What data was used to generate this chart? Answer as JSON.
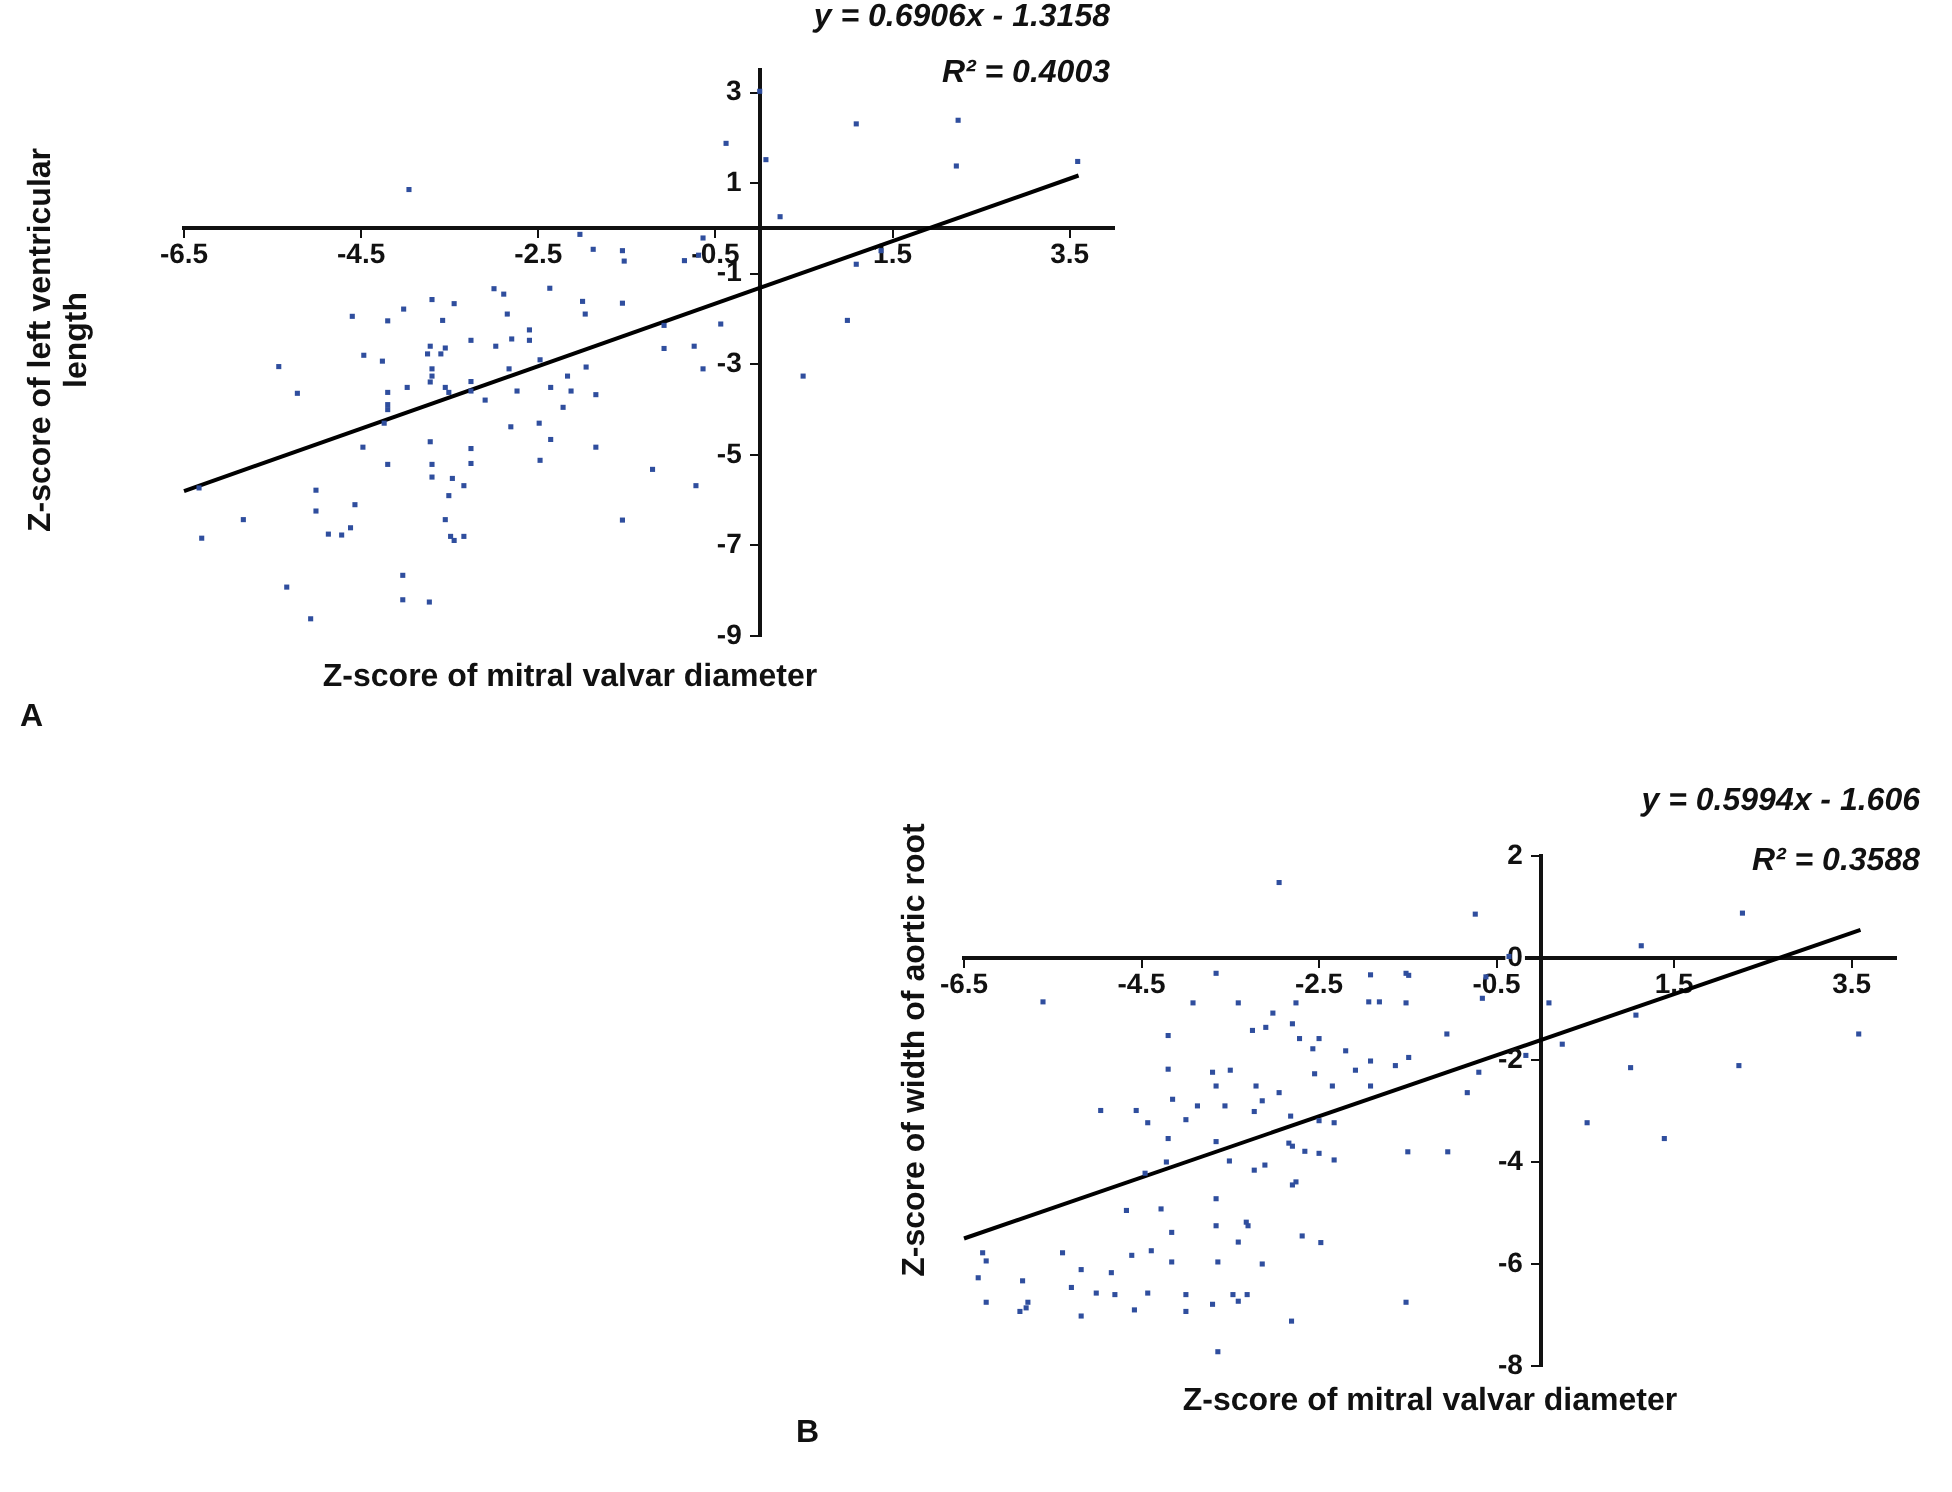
{
  "chart_data": [
    {
      "type": "scatter",
      "xlabel": "Z-score of mitral valvar diameter",
      "ylabel": "Z-score of left ventricular length",
      "annotations": [
        "y = 0.6906x - 1.3158",
        "R² = 0.4003",
        "A"
      ],
      "xlim": [
        -6.5,
        4
      ],
      "xticks": [
        -6.5,
        -4.5,
        -2.5,
        -0.5,
        1.5,
        3.5
      ],
      "ylim": [
        -9,
        3.5
      ],
      "yticks": [
        -9,
        -7,
        -5,
        -3,
        -1,
        1,
        3
      ],
      "legend": false,
      "series": [
        {
          "type": "scatter",
          "color": "#2f4e9e",
          "marker": "square",
          "x": [
            0.0,
            -0.38,
            0.07,
            0.23,
            1.09,
            2.24,
            2.22,
            3.59,
            -3.96,
            -2.03,
            -1.88,
            -1.55,
            -1.53,
            -0.64,
            -0.69,
            -0.85,
            1.37,
            1.09,
            0.99,
            0.49,
            -0.44,
            -0.74,
            -0.64,
            -1.08,
            -1.08,
            -1.55,
            -2.0,
            -1.97,
            -2.37,
            -3.0,
            -2.89,
            -2.85,
            -2.6,
            -2.6,
            -2.8,
            -2.98,
            -2.48,
            -2.83,
            -2.74,
            -2.36,
            -2.13,
            -2.17,
            -1.96,
            -1.85,
            -2.22,
            -2.81,
            -2.49,
            -2.36,
            -2.48,
            -1.85,
            -1.21,
            -0.72,
            -1.55,
            -3.1,
            -3.26,
            -3.26,
            -3.26,
            -3.45,
            -3.58,
            -3.55,
            -3.6,
            -3.7,
            -3.72,
            -3.75,
            -3.7,
            -3.7,
            -3.72,
            -4.02,
            -3.98,
            -4.2,
            -4.2,
            -4.2,
            -4.2,
            -4.26,
            -4.47,
            -4.6,
            -4.24,
            -4.48,
            -4.2,
            -3.55,
            -3.51,
            -3.26,
            -3.26,
            -3.72,
            -3.7,
            -3.7,
            -3.47,
            -3.34,
            -3.51,
            -3.55,
            -3.49,
            -3.45,
            -3.34,
            -4.57,
            -4.62,
            -4.72,
            -4.87,
            -5.01,
            -5.01,
            -4.03,
            -4.03,
            -3.73,
            -5.34,
            -5.07,
            -5.43,
            -5.22,
            -5.83,
            -6.33,
            -6.3
          ],
          "values": [
            3.03,
            1.88,
            1.52,
            0.26,
            2.31,
            2.39,
            1.38,
            1.48,
            0.86,
            -0.13,
            -0.46,
            -0.49,
            -0.72,
            -0.21,
            -0.59,
            -0.71,
            -0.49,
            -0.79,
            -2.03,
            -3.26,
            -2.11,
            -2.6,
            -3.1,
            -2.14,
            -2.65,
            -1.65,
            -1.61,
            -1.89,
            -1.32,
            -1.33,
            -1.45,
            -1.89,
            -2.24,
            -2.47,
            -2.44,
            -2.6,
            -2.9,
            -3.1,
            -3.59,
            -3.51,
            -3.59,
            -3.26,
            -3.06,
            -3.67,
            -3.95,
            -4.38,
            -4.3,
            -4.66,
            -5.12,
            -4.83,
            -5.32,
            -5.68,
            -6.44,
            -3.79,
            -3.59,
            -3.38,
            -2.47,
            -1.66,
            -2.03,
            -2.64,
            -2.77,
            -1.57,
            -2.6,
            -2.77,
            -3.1,
            -3.26,
            -3.39,
            -1.78,
            -3.51,
            -2.04,
            -3.62,
            -3.89,
            -4.0,
            -2.93,
            -2.8,
            -1.94,
            -4.3,
            -4.83,
            -5.21,
            -3.51,
            -3.62,
            -4.86,
            -5.19,
            -4.71,
            -5.21,
            -5.49,
            -5.52,
            -5.68,
            -5.9,
            -6.43,
            -6.8,
            -6.89,
            -6.8,
            -6.1,
            -6.61,
            -6.77,
            -6.75,
            -5.78,
            -6.24,
            -7.66,
            -8.2,
            -8.25,
            -7.92,
            -8.62,
            -3.05,
            -3.64,
            -6.43,
            -5.73,
            -6.84
          ]
        },
        {
          "type": "line",
          "color": "#000000",
          "marker": "none",
          "x": [
            -6.5,
            3.6
          ],
          "values": [
            -5.8,
            1.17
          ]
        }
      ]
    },
    {
      "type": "scatter",
      "xlabel": "Z-score of mitral valvar diameter",
      "ylabel": "Z-score of width of aortic root",
      "annotations": [
        "y = 0.5994x - 1.606",
        "R² = 0.3588",
        "B"
      ],
      "xlim": [
        -6.5,
        4
      ],
      "xticks": [
        -6.5,
        -4.5,
        -2.5,
        -0.5,
        1.5,
        3.5
      ],
      "ylim": [
        -8,
        2
      ],
      "yticks": [
        -8,
        -6,
        -4,
        -2,
        0,
        2
      ],
      "legend": false,
      "series": [
        {
          "type": "scatter",
          "color": "#2f4e9e",
          "marker": "square",
          "x": [
            -2.95,
            -0.74,
            2.27,
            1.13,
            -0.62,
            -0.66,
            -0.36,
            -3.66,
            -5.61,
            -3.92,
            -3.41,
            -2.76,
            -1.94,
            -1.82,
            -1.92,
            -1.52,
            -1.49,
            -1.52,
            0.09,
            1.07,
            0.24,
            3.58,
            -4.2,
            -4.2,
            -3.25,
            -3.02,
            -3.1,
            -2.8,
            -2.72,
            -2.57,
            -2.5,
            -2.55,
            -2.35,
            -2.2,
            -2.09,
            -1.92,
            -1.92,
            -1.64,
            -1.49,
            -1.06,
            -0.83,
            -0.7,
            -0.17,
            1.01,
            2.23,
            0.52,
            1.39,
            -1.5,
            -1.05,
            -4.96,
            -4.56,
            -4.43,
            -4.2,
            -4.15,
            -4.0,
            -3.87,
            -3.7,
            -3.66,
            -3.5,
            -3.56,
            -3.66,
            -3.51,
            -3.21,
            -3.23,
            -3.14,
            -2.95,
            -2.82,
            -2.84,
            -2.8,
            -2.66,
            -2.5,
            -2.5,
            -2.33,
            -3.23,
            -3.11,
            -2.76,
            -2.8,
            -2.33,
            -4.46,
            -4.22,
            -4.67,
            -4.28,
            -4.16,
            -3.66,
            -3.66,
            -3.32,
            -3.3,
            -3.41,
            -3.14,
            -2.69,
            -2.48,
            -3.64,
            -4.39,
            -4.16,
            -4.61,
            -4.84,
            -5.01,
            -5.39,
            -5.18,
            -5.29,
            -5.18,
            -4.8,
            -4.58,
            -4.43,
            -4.0,
            -4.0,
            -3.7,
            -3.47,
            -3.41,
            -3.31,
            -3.64,
            -2.81,
            -1.52,
            -6.29,
            -6.25,
            -6.34,
            -6.25,
            -5.84,
            -5.8,
            -5.87,
            -5.78
          ],
          "values": [
            1.48,
            0.86,
            0.88,
            0.24,
            -0.37,
            -0.79,
            0.03,
            -0.3,
            -0.86,
            -0.88,
            -0.88,
            -0.88,
            -0.86,
            -0.86,
            -0.33,
            -0.3,
            -0.34,
            -0.88,
            -0.88,
            -1.12,
            -1.69,
            -1.49,
            -1.52,
            -2.18,
            -1.42,
            -1.08,
            -1.36,
            -1.29,
            -1.58,
            -1.78,
            -1.58,
            -2.27,
            -2.51,
            -1.82,
            -2.2,
            -2.02,
            -2.51,
            -2.11,
            -1.95,
            -1.49,
            -2.64,
            -2.24,
            -1.91,
            -2.15,
            -2.11,
            -3.23,
            -3.54,
            -3.8,
            -3.8,
            -2.99,
            -2.99,
            -3.23,
            -3.54,
            -2.77,
            -3.17,
            -2.9,
            -2.24,
            -2.51,
            -2.2,
            -2.9,
            -3.6,
            -3.98,
            -2.51,
            -3.01,
            -2.8,
            -2.64,
            -3.1,
            -3.63,
            -3.69,
            -3.79,
            -3.83,
            -3.19,
            -3.23,
            -4.16,
            -4.06,
            -4.39,
            -4.45,
            -3.96,
            -4.22,
            -4.0,
            -4.95,
            -4.92,
            -5.38,
            -4.72,
            -5.25,
            -5.18,
            -5.25,
            -5.57,
            -6.0,
            -5.45,
            -5.58,
            -5.96,
            -5.74,
            -5.96,
            -5.83,
            -6.17,
            -6.57,
            -5.78,
            -6.11,
            -6.46,
            -7.02,
            -6.6,
            -6.9,
            -6.57,
            -6.6,
            -6.93,
            -6.79,
            -6.6,
            -6.73,
            -6.6,
            -7.72,
            -7.12,
            -6.75,
            -5.78,
            -5.94,
            -6.27,
            -6.75,
            -6.33,
            -6.86,
            -6.93,
            -6.75
          ]
        },
        {
          "type": "line",
          "color": "#000000",
          "marker": "none",
          "x": [
            -6.5,
            3.6
          ],
          "values": [
            -5.5,
            0.55
          ]
        }
      ]
    }
  ]
}
